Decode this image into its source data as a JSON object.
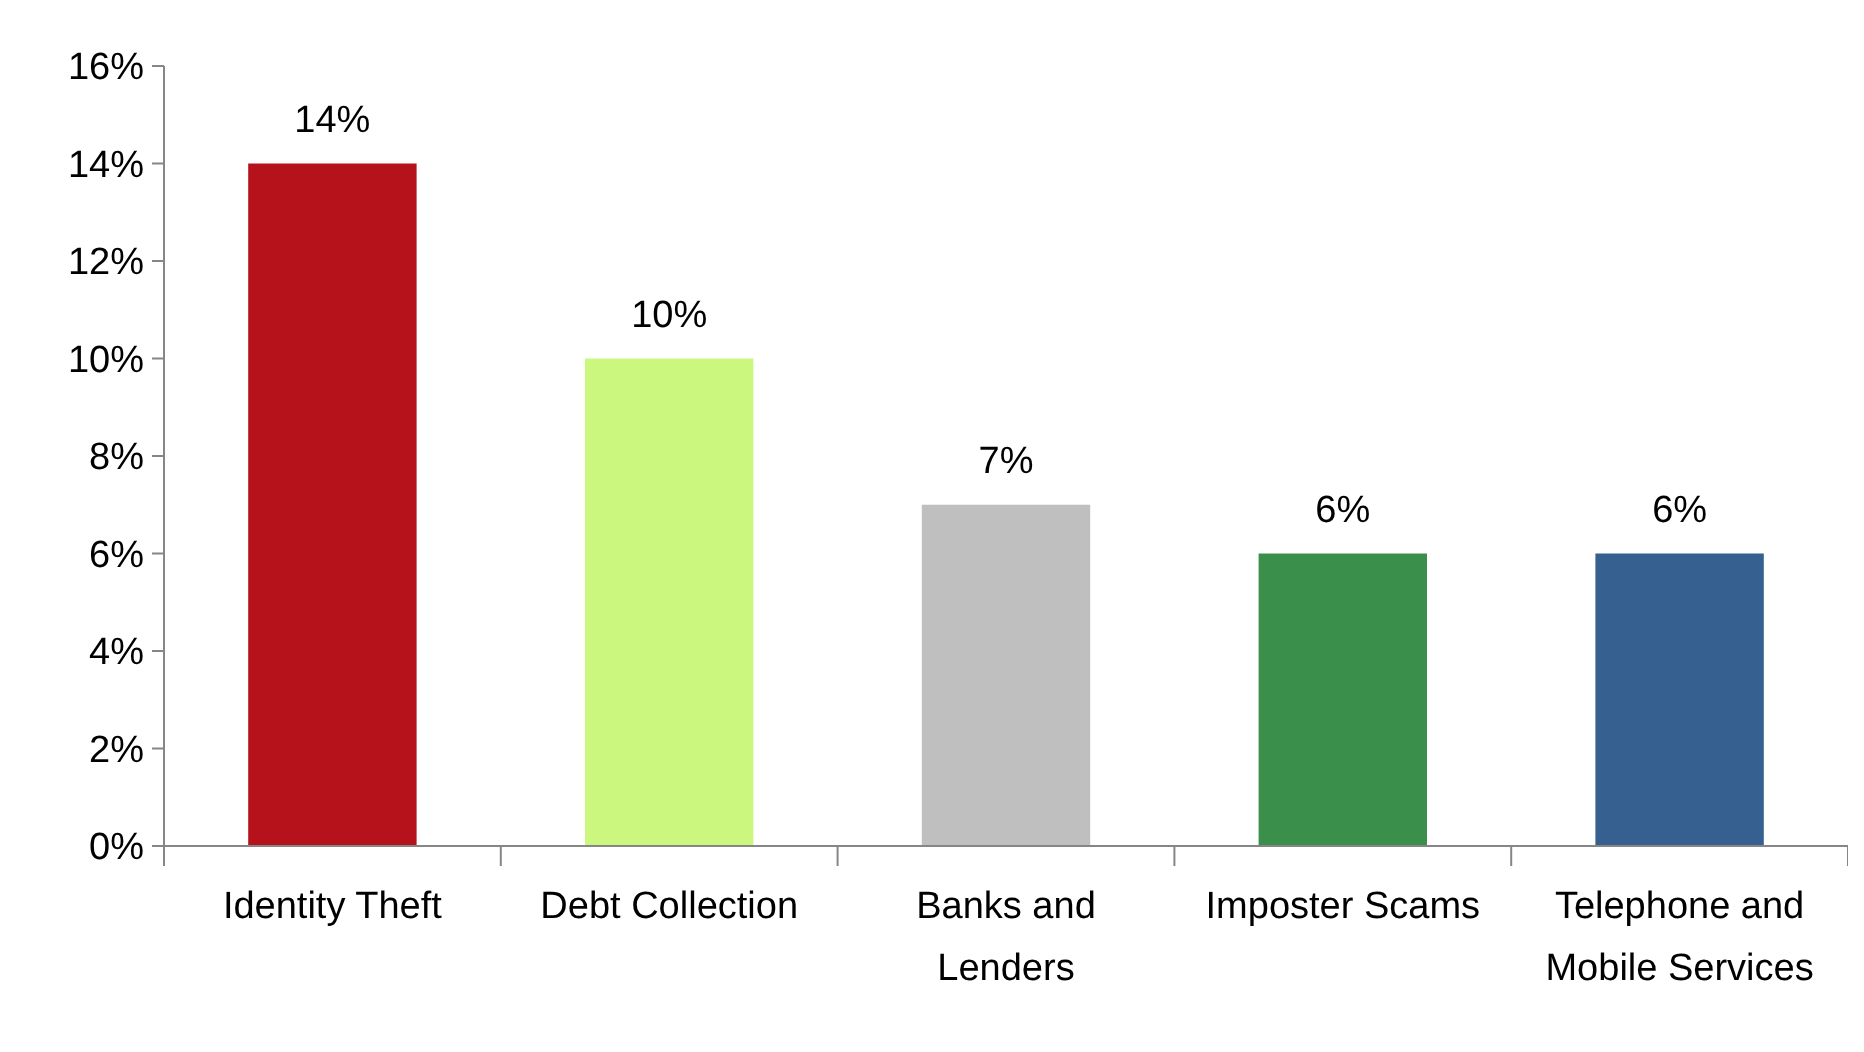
{
  "chart_data": {
    "type": "bar",
    "categories": [
      "Identity Theft",
      "Debt Collection",
      "Banks and Lenders",
      "Imposter Scams",
      "Telephone and Mobile Services"
    ],
    "values": [
      14,
      10,
      7,
      6,
      6
    ],
    "colors": [
      "#b5121b",
      "#ccf77f",
      "#bfbfbf",
      "#3a8f4b",
      "#35608f"
    ],
    "value_labels": [
      "14%",
      "10%",
      "7%",
      "6%",
      "6%"
    ],
    "ylim": [
      0,
      16
    ],
    "yticks": [
      {
        "value": 0,
        "label": "0%"
      },
      {
        "value": 2,
        "label": "2%"
      },
      {
        "value": 4,
        "label": "4%"
      },
      {
        "value": 6,
        "label": "6%"
      },
      {
        "value": 8,
        "label": "8%"
      },
      {
        "value": 10,
        "label": "10%"
      },
      {
        "value": 12,
        "label": "12%"
      },
      {
        "value": 14,
        "label": "14%"
      },
      {
        "value": 16,
        "label": "16%"
      }
    ],
    "grid": false,
    "legend": false
  }
}
